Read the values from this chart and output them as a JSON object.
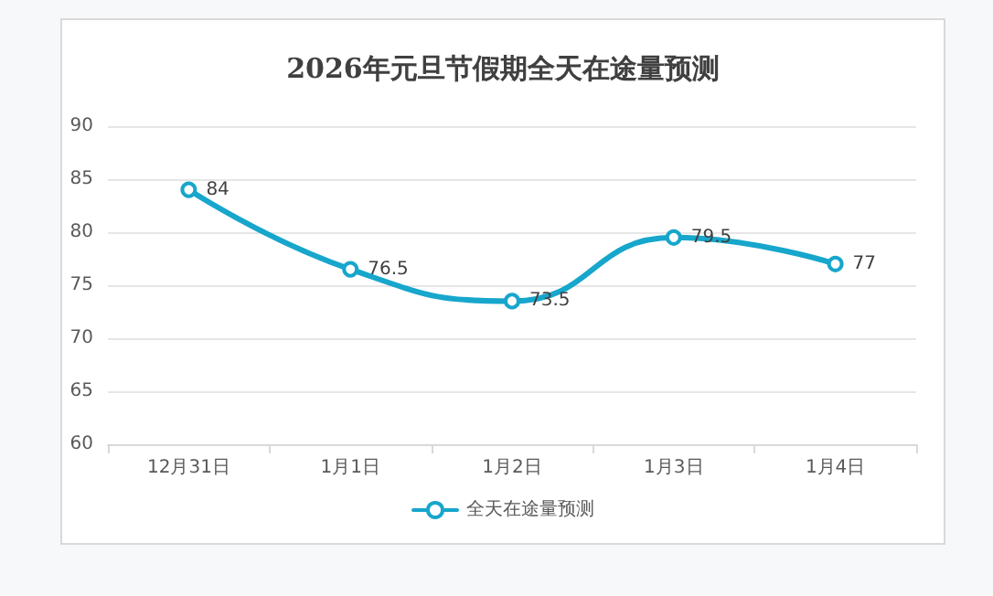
{
  "chart_data": {
    "type": "line",
    "title": "2026年元旦节假期全天在途量预测",
    "categories": [
      "12月31日",
      "1月1日",
      "1月2日",
      "1月3日",
      "1月4日"
    ],
    "series": [
      {
        "name": "全天在途量预测",
        "color": "#17a6cc",
        "values": [
          84,
          76.5,
          73.5,
          79.5,
          77
        ]
      }
    ],
    "ylim": [
      60,
      90
    ],
    "yticks": [
      60,
      65,
      70,
      75,
      80,
      85,
      90
    ],
    "grid": "y",
    "legend": "bottom",
    "marker": "circle",
    "line_style": "solid",
    "data_labels": true
  }
}
